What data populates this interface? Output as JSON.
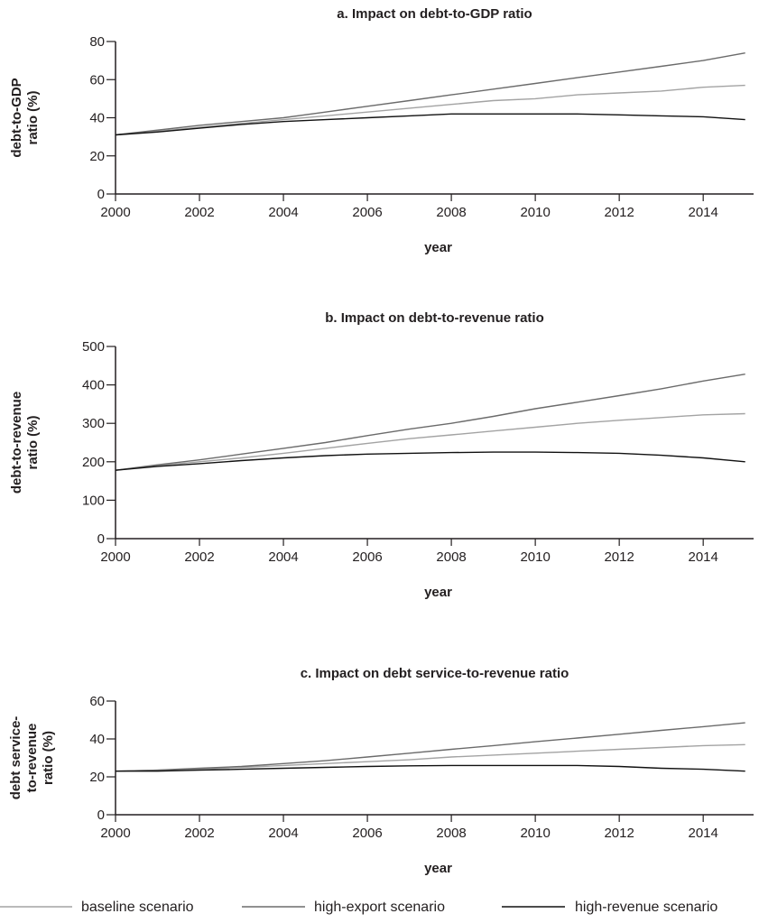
{
  "chart_data": [
    {
      "type": "line",
      "title": "a. Impact on debt-to-GDP ratio",
      "xlabel": "year",
      "ylabel": [
        "debt-to-GDP",
        "ratio (%)"
      ],
      "xlim": [
        2000,
        2015.2
      ],
      "ylim": [
        0,
        80
      ],
      "xticks": [
        2000,
        2002,
        2004,
        2006,
        2008,
        2010,
        2012,
        2014
      ],
      "yticks": [
        0,
        20,
        40,
        60,
        80
      ],
      "grid": false,
      "x": [
        2000,
        2001,
        2002,
        2003,
        2004,
        2005,
        2006,
        2007,
        2008,
        2009,
        2010,
        2011,
        2012,
        2013,
        2014,
        2015
      ],
      "series": [
        {
          "name": "baseline scenario",
          "color": "#a3a3a3",
          "values": [
            31,
            33,
            35,
            37,
            39,
            41,
            43,
            45,
            47,
            49,
            50,
            52,
            53,
            54,
            56,
            57
          ]
        },
        {
          "name": "high-export scenario",
          "color": "#6b6b6b",
          "values": [
            31,
            33.5,
            36,
            38,
            40,
            43,
            46,
            49,
            52,
            55,
            58,
            61,
            64,
            67,
            70,
            74
          ]
        },
        {
          "name": "high-revenue scenario",
          "color": "#111111",
          "values": [
            31,
            32.5,
            34.5,
            36.5,
            38,
            39,
            40,
            41,
            42,
            42,
            42,
            42,
            41.5,
            41,
            40.5,
            39
          ]
        }
      ]
    },
    {
      "type": "line",
      "title": "b. Impact on debt-to-revenue ratio",
      "xlabel": "year",
      "ylabel": [
        "debt-to-revenue",
        "ratio (%)"
      ],
      "xlim": [
        2000,
        2015.2
      ],
      "ylim": [
        0,
        500
      ],
      "xticks": [
        2000,
        2002,
        2004,
        2006,
        2008,
        2010,
        2012,
        2014
      ],
      "yticks": [
        0,
        100,
        200,
        300,
        400,
        500
      ],
      "grid": false,
      "x": [
        2000,
        2001,
        2002,
        2003,
        2004,
        2005,
        2006,
        2007,
        2008,
        2009,
        2010,
        2011,
        2012,
        2013,
        2014,
        2015
      ],
      "series": [
        {
          "name": "baseline scenario",
          "color": "#a3a3a3",
          "values": [
            178,
            190,
            200,
            210,
            222,
            235,
            248,
            260,
            270,
            280,
            290,
            300,
            308,
            315,
            322,
            325
          ]
        },
        {
          "name": "high-export scenario",
          "color": "#6b6b6b",
          "values": [
            178,
            192,
            205,
            220,
            235,
            250,
            268,
            285,
            300,
            318,
            338,
            355,
            372,
            390,
            410,
            428
          ]
        },
        {
          "name": "high-revenue scenario",
          "color": "#111111",
          "values": [
            178,
            188,
            195,
            203,
            210,
            216,
            220,
            222,
            224,
            225,
            225,
            224,
            222,
            217,
            210,
            200
          ]
        }
      ]
    },
    {
      "type": "line",
      "title": "c. Impact on debt service-to-revenue ratio",
      "xlabel": "year",
      "ylabel": [
        "debt service-",
        "to-revenue",
        "ratio (%)"
      ],
      "xlim": [
        2000,
        2015.2
      ],
      "ylim": [
        0,
        60
      ],
      "xticks": [
        2000,
        2002,
        2004,
        2006,
        2008,
        2010,
        2012,
        2014
      ],
      "yticks": [
        0,
        20,
        40,
        60
      ],
      "grid": false,
      "x": [
        2000,
        2001,
        2002,
        2003,
        2004,
        2005,
        2006,
        2007,
        2008,
        2009,
        2010,
        2011,
        2012,
        2013,
        2014,
        2015
      ],
      "series": [
        {
          "name": "baseline scenario",
          "color": "#a3a3a3",
          "values": [
            23,
            23.5,
            24,
            25,
            26,
            27,
            28,
            29,
            30.5,
            31.5,
            32.5,
            33.5,
            34.5,
            35.5,
            36.5,
            37
          ]
        },
        {
          "name": "high-export scenario",
          "color": "#6b6b6b",
          "values": [
            23,
            23.5,
            24.5,
            25.5,
            27,
            28.5,
            30.5,
            32.5,
            34.5,
            36.5,
            38.5,
            40.5,
            42.5,
            44.5,
            46.5,
            48.5
          ]
        },
        {
          "name": "high-revenue scenario",
          "color": "#111111",
          "values": [
            23,
            23,
            23.5,
            24,
            24.5,
            25,
            25.5,
            25.8,
            26,
            26,
            26,
            26,
            25.5,
            24.5,
            24,
            23
          ]
        }
      ]
    }
  ],
  "legend": {
    "placement": "bottom",
    "items": [
      {
        "label": "baseline scenario",
        "color": "#a3a3a3"
      },
      {
        "label": "high-export scenario",
        "color": "#6b6b6b"
      },
      {
        "label": "high-revenue scenario",
        "color": "#111111"
      }
    ]
  }
}
